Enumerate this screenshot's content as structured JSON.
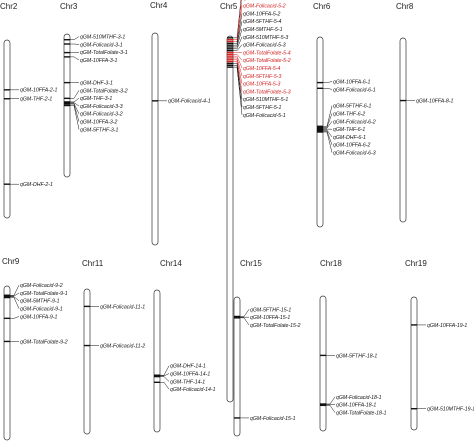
{
  "colors": {
    "black": "#111111",
    "red": "#d42020",
    "outline": "#333333",
    "label": "#222222"
  },
  "chromosomes": [
    {
      "name": "Chr2",
      "qtls": [
        {
          "label": "qGM-10FFA-2-1",
          "pos": 0.28
        },
        {
          "label": "qGM-THF-2-1",
          "pos": 0.33
        },
        {
          "label": "qGM-DHF-2-1",
          "pos": 0.81
        }
      ]
    },
    {
      "name": "Chr3",
      "qtls": [
        {
          "label": "qGM-510MTHF-3-1",
          "pos": 0.04
        },
        {
          "label": "qGM-Folicacid-3-1",
          "pos": 0.07
        },
        {
          "label": "qGM-TotalFolate-3-1",
          "pos": 0.13
        },
        {
          "label": "qGM-10FFA-3-1",
          "pos": 0.16
        },
        {
          "label": "qGM-DHF-3-1",
          "pos": 0.34
        },
        {
          "label": "qGM-TotalFolate-3-2",
          "pos": 0.45
        },
        {
          "label": "qGM-THF-3-1",
          "pos": 0.475
        },
        {
          "label": "qGM-Folicacid-3-3",
          "pos": 0.48
        },
        {
          "label": "qGM-Folicacid-3-2",
          "pos": 0.485
        },
        {
          "label": "qGM-10FFA-3-2",
          "pos": 0.49
        },
        {
          "label": "qGM-5FTHF-3-1",
          "pos": 0.5
        }
      ]
    },
    {
      "name": "Chr4",
      "qtls": [
        {
          "label": "qGM-Folicacid-4-1",
          "pos": 0.32
        }
      ]
    },
    {
      "name": "Chr5",
      "qtls": [
        {
          "label": "qGM-5FTHF-5-2",
          "pos": 0.005,
          "red": false
        },
        {
          "label": "qGM-510MTHF-5-2",
          "pos": 0.01,
          "red": true
        },
        {
          "label": "qGM-Folicacid-5-2",
          "pos": 0.015,
          "red": true
        },
        {
          "label": "qGM-10FFA-5-2",
          "pos": 0.02,
          "red": false
        },
        {
          "label": "qGM-5FTHF-5-4",
          "pos": 0.025,
          "red": false
        },
        {
          "label": "qGM-5MTHF-5-1",
          "pos": 0.03,
          "red": false
        },
        {
          "label": "qGM-510MTHF-5-3",
          "pos": 0.035,
          "red": false
        },
        {
          "label": "qGM-Folicacid-5-3",
          "pos": 0.04,
          "red": false
        },
        {
          "label": "qGM-TotalFolate-5-4",
          "pos": 0.045,
          "red": true
        },
        {
          "label": "qGM-TotalFolate-5-2",
          "pos": 0.05,
          "red": true
        },
        {
          "label": "qGM-10FFA-5-4",
          "pos": 0.055,
          "red": true
        },
        {
          "label": "qGM-5FTHF-5-3",
          "pos": 0.06,
          "red": true
        },
        {
          "label": "qGM-10FFA-5-3",
          "pos": 0.065,
          "red": true
        },
        {
          "label": "qGM-TotalFolate-5-3",
          "pos": 0.07,
          "red": true
        },
        {
          "label": "qGM-510MTHF-5-1",
          "pos": 0.075,
          "red": false
        },
        {
          "label": "qGM-5FTHF-5-1",
          "pos": 0.08,
          "red": false
        },
        {
          "label": "qGM-Folicacid-5-1",
          "pos": 0.085,
          "red": false
        }
      ]
    },
    {
      "name": "Chr6",
      "qtls": [
        {
          "label": "qGM-10FFA-6-1",
          "pos": 0.24
        },
        {
          "label": "qGM-Folicacid-6-1",
          "pos": 0.27
        },
        {
          "label": "qGM-5FTHF-6-1",
          "pos": 0.47
        },
        {
          "label": "qGM-THF-6-2",
          "pos": 0.475
        },
        {
          "label": "qGM-Folicacid-6-2",
          "pos": 0.48
        },
        {
          "label": "qGM-THF-6-1",
          "pos": 0.485
        },
        {
          "label": "qGM-DHF-6-1",
          "pos": 0.49
        },
        {
          "label": "qGM-10FFA-6-2",
          "pos": 0.495
        },
        {
          "label": "qGM-Folicacid-6-3",
          "pos": 0.5
        }
      ]
    },
    {
      "name": "Chr8",
      "qtls": [
        {
          "label": "qGM-10FFA-8-1",
          "pos": 0.34
        }
      ]
    },
    {
      "name": "Chr9",
      "qtls": [
        {
          "label": "qGM-Folicacid-9-2",
          "pos": 0.06
        },
        {
          "label": "qGM-TotalFolate-9-1",
          "pos": 0.065
        },
        {
          "label": "qGM-5MTHF-9-1",
          "pos": 0.07
        },
        {
          "label": "qGM-Folicacid-9-1",
          "pos": 0.075
        },
        {
          "label": "qGM-10FFA-9-1",
          "pos": 0.21
        },
        {
          "label": "qGM-TotalFolate-9-2",
          "pos": 0.36
        }
      ]
    },
    {
      "name": "Chr11",
      "qtls": [
        {
          "label": "qGM-Folicacid-11-1",
          "pos": 0.12
        },
        {
          "label": "qGM-Folicacid-11-2",
          "pos": 0.39
        }
      ]
    },
    {
      "name": "Chr14",
      "qtls": [
        {
          "label": "qGM-DHF-14-1",
          "pos": 0.6
        },
        {
          "label": "qGM-10FFA-14-1",
          "pos": 0.605
        },
        {
          "label": "qGM-THF-14-1",
          "pos": 0.61
        },
        {
          "label": "qGM-Folicacid-14-1",
          "pos": 0.65
        }
      ]
    },
    {
      "name": "Chr15",
      "qtls": [
        {
          "label": "qGM-5FTHF-15-1",
          "pos": 0.14
        },
        {
          "label": "qGM-10FFA-15-1",
          "pos": 0.145
        },
        {
          "label": "qGM-TotalFolate-15-2",
          "pos": 0.15
        },
        {
          "label": "qGM-Folicacid-15-1",
          "pos": 0.87
        }
      ]
    },
    {
      "name": "Chr18",
      "qtls": [
        {
          "label": "qGM-5FTHF-18-1",
          "pos": 0.44
        },
        {
          "label": "qGM-Folicacid-18-1",
          "pos": 0.8
        },
        {
          "label": "qGM-10FFA-18-1",
          "pos": 0.805
        },
        {
          "label": "qGM-TotalFolate-18-1",
          "pos": 0.81
        }
      ]
    },
    {
      "name": "Chr19",
      "qtls": [
        {
          "label": "qGM-10FFA-19-1",
          "pos": 0.21
        },
        {
          "label": "qGM-510MTHF-19-1",
          "pos": 0.84
        }
      ]
    }
  ]
}
